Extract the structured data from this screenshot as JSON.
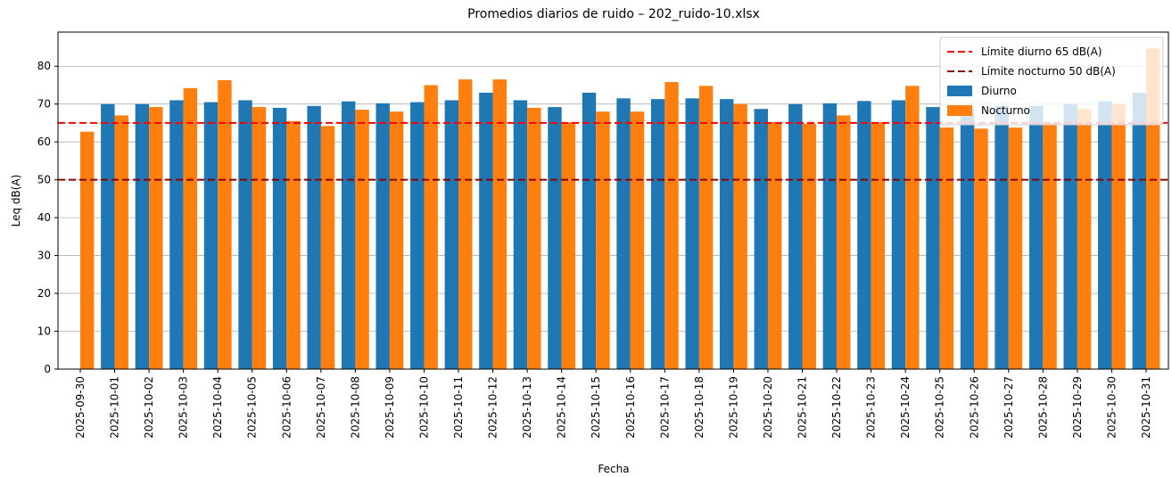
{
  "chart_data": {
    "type": "bar",
    "title": "Promedios diarios de ruido – 202_ruido-10.xlsx",
    "x_label": "Fecha",
    "y_label": "Leq dB(A)",
    "categories": [
      "2025-09-30",
      "2025-10-01",
      "2025-10-02",
      "2025-10-03",
      "2025-10-04",
      "2025-10-05",
      "2025-10-06",
      "2025-10-07",
      "2025-10-08",
      "2025-10-09",
      "2025-10-10",
      "2025-10-11",
      "2025-10-12",
      "2025-10-13",
      "2025-10-14",
      "2025-10-15",
      "2025-10-16",
      "2025-10-17",
      "2025-10-18",
      "2025-10-19",
      "2025-10-20",
      "2025-10-21",
      "2025-10-22",
      "2025-10-23",
      "2025-10-24",
      "2025-10-25",
      "2025-10-26",
      "2025-10-27",
      "2025-10-28",
      "2025-10-29",
      "2025-10-30",
      "2025-10-31"
    ],
    "series": [
      {
        "name": "Diurno",
        "color": "#1f77b4",
        "values": [
          null,
          70,
          70,
          71,
          70.5,
          71,
          69,
          69.5,
          70.7,
          70.2,
          70.5,
          71,
          73,
          71,
          69.2,
          73,
          71.5,
          71.3,
          71.5,
          71.3,
          68.7,
          70,
          70.2,
          70.8,
          71,
          69.2,
          69,
          69.5,
          69.5,
          70,
          70.7,
          73
        ]
      },
      {
        "name": "Nocturno",
        "color": "#ff7f0e",
        "values": [
          62.7,
          67,
          69.2,
          74.2,
          76.3,
          69.2,
          65.5,
          64.2,
          68.5,
          68,
          75,
          76.5,
          76.5,
          69,
          65.2,
          68,
          68,
          75.8,
          74.8,
          70,
          65.2,
          64.8,
          67,
          65.2,
          74.8,
          63.8,
          63.5,
          63.8,
          65,
          68.7,
          70,
          84.7
        ]
      }
    ],
    "reference_lines": [
      {
        "name": "Límite diurno 65 dB(A)",
        "value": 65,
        "color": "#ff0000"
      },
      {
        "name": "Límite nocturno 50 dB(A)",
        "value": 50,
        "color": "#8b0000"
      }
    ],
    "ylim": [
      0,
      89
    ],
    "yticks": [
      0,
      10,
      20,
      30,
      40,
      50,
      60,
      70,
      80
    ],
    "grid": true,
    "legend": "upper right"
  }
}
